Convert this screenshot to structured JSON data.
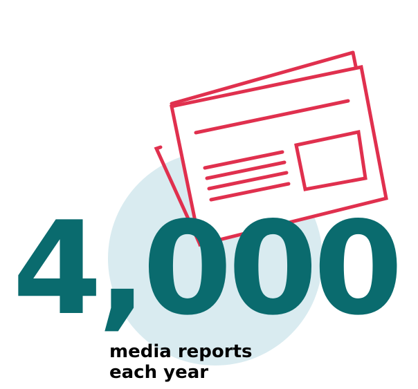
{
  "stat": {
    "value": "4,000",
    "caption_line1": "media reports",
    "caption_line2": "each year"
  },
  "icon": {
    "name": "newspaper-icon",
    "stroke_color": "#e0304e"
  },
  "colors": {
    "number": "#0a6b6e",
    "circle": "#d9ebf0",
    "caption": "#000000"
  }
}
